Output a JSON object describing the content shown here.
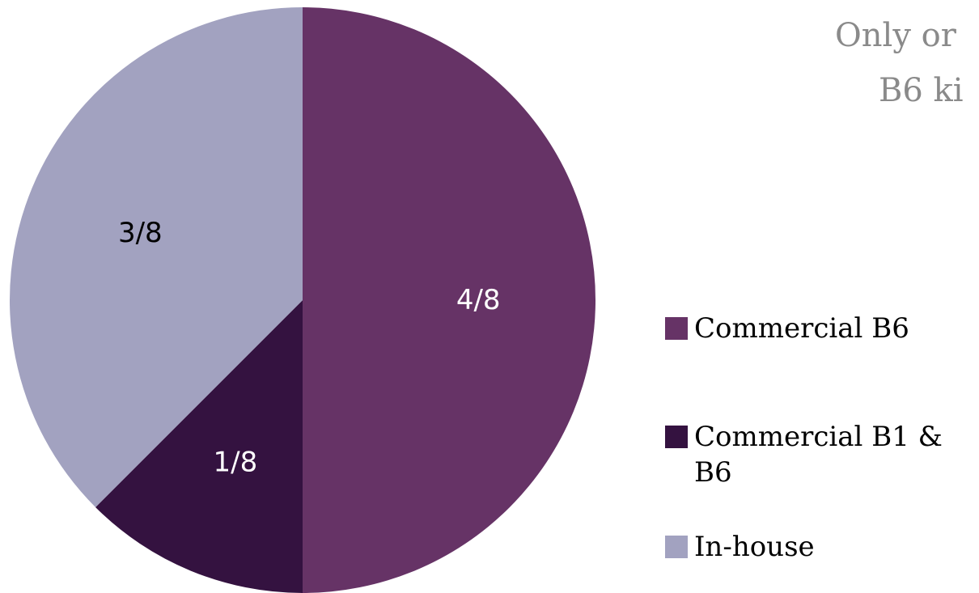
{
  "title": {
    "line1": "Only or",
    "line2": "B6 ki"
  },
  "chart_data": {
    "type": "pie",
    "categories": [
      "Commercial B6",
      "Commercial B1 & B6",
      "In-house"
    ],
    "values": [
      4,
      1,
      3
    ],
    "data_labels": [
      "4/8",
      "1/8",
      "3/8"
    ],
    "colors": [
      "#663366",
      "#341240",
      "#a2a2c0"
    ],
    "label_colors": [
      "#ffffff",
      "#ffffff",
      "#000000"
    ],
    "start_angle_deg": 0,
    "direction": "clockwise",
    "legend_position": "right"
  },
  "legend": {
    "items": [
      {
        "label": "Commercial B6",
        "color": "#663366"
      },
      {
        "label": "Commercial B1 & B6",
        "color": "#341240"
      },
      {
        "label": "In-house",
        "color": "#a2a2c0"
      }
    ]
  }
}
